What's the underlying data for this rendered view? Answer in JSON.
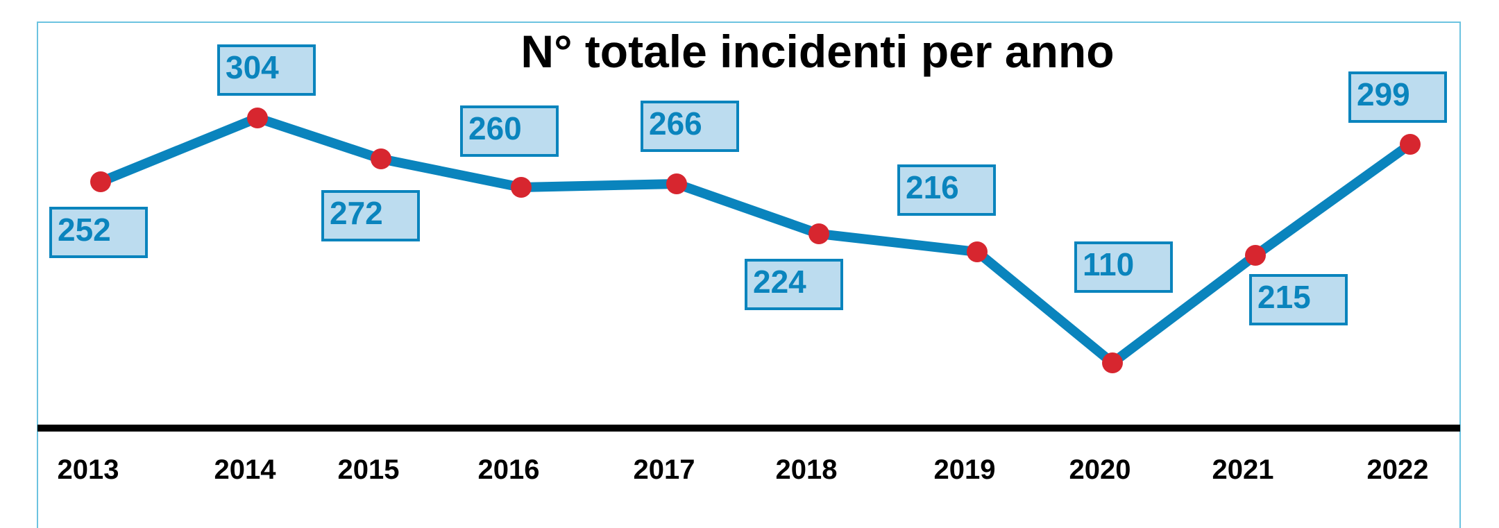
{
  "chart_data": {
    "type": "line",
    "title": "N° totale incidenti per anno",
    "xlabel": "",
    "ylabel": "",
    "categories": [
      "2013",
      "2014",
      "2015",
      "2016",
      "2017",
      "2018",
      "2019",
      "2020",
      "2021",
      "2022"
    ],
    "series": [
      {
        "values": [
          252,
          304,
          272,
          260,
          266,
          224,
          216,
          110,
          215,
          299
        ]
      }
    ],
    "grid": false,
    "legend": "none",
    "colors": {
      "line": "#0a84bd",
      "marker": "#d7262f",
      "label_fill": "#bcdcef",
      "label_border": "#0a84bd",
      "label_text": "#0a84bd",
      "axis": "#000000",
      "frame": "#6cc3e0"
    }
  }
}
